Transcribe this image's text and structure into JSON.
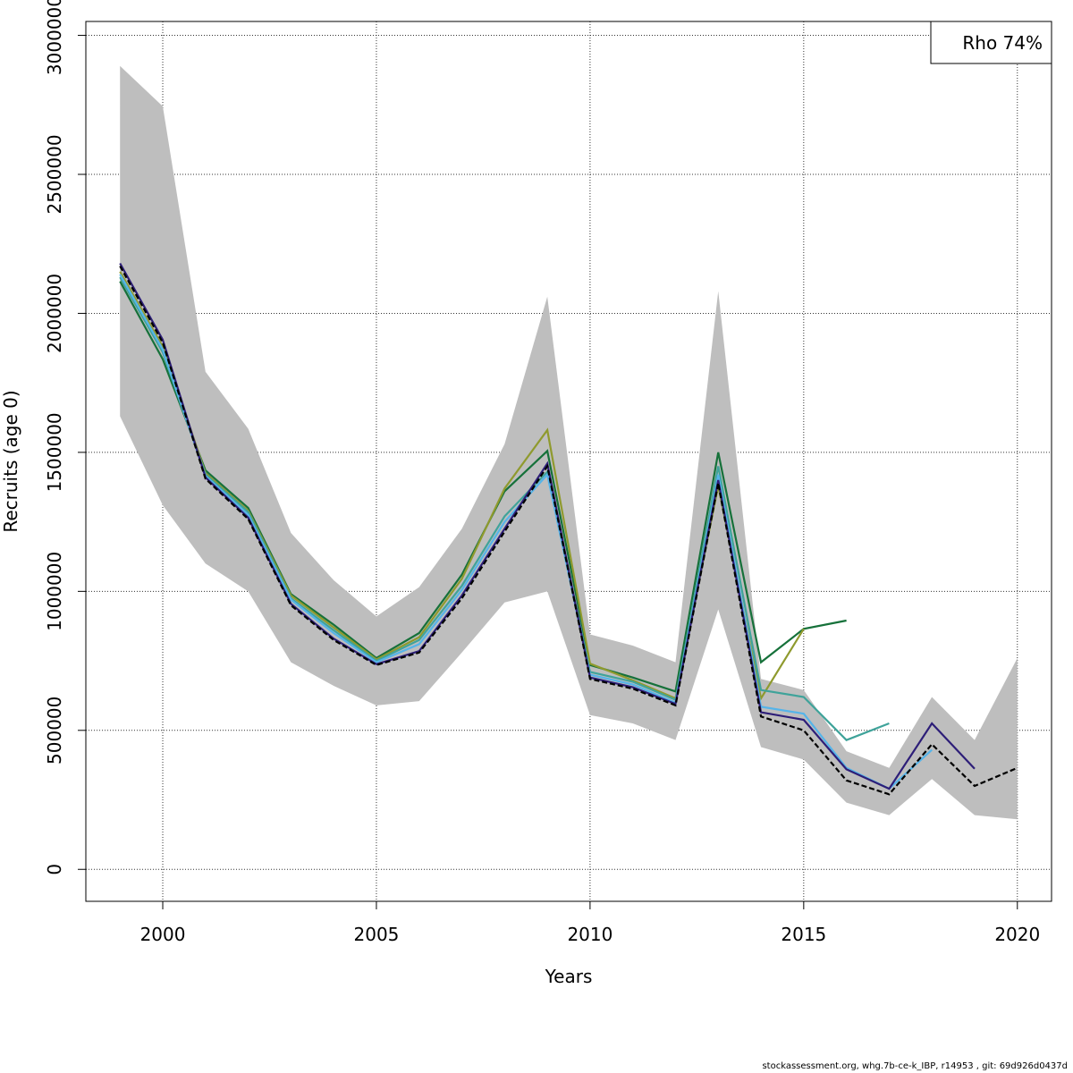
{
  "chart_data": {
    "type": "line",
    "xlabel": "Years",
    "ylabel": "Recruits (age 0)",
    "xlim": [
      1998.2,
      2020.8
    ],
    "ylim": [
      -115000,
      3050000
    ],
    "x_ticks": [
      2000,
      2005,
      2010,
      2015,
      2020
    ],
    "y_ticks": [
      0,
      500000,
      1000000,
      1500000,
      2000000,
      2500000,
      3000000
    ],
    "grid": true,
    "legend_position": "top-right",
    "legend": {
      "text": "Rho 74%"
    },
    "band": {
      "color": "#bebebe",
      "x": [
        1999,
        2000,
        2001,
        2002,
        2003,
        2004,
        2005,
        2006,
        2007,
        2008,
        2009,
        2010,
        2011,
        2012,
        2013,
        2014,
        2015,
        2016,
        2017,
        2018,
        2019,
        2020
      ],
      "lower": [
        1630000,
        1310000,
        1100000,
        1000000,
        745000,
        660000,
        590000,
        605000,
        780000,
        960000,
        1000000,
        555000,
        525000,
        465000,
        935000,
        440000,
        395000,
        240000,
        195000,
        325000,
        195000,
        180000
      ],
      "upper": [
        2890000,
        2745000,
        1790000,
        1585000,
        1210000,
        1040000,
        910000,
        1015000,
        1225000,
        1530000,
        2060000,
        845000,
        805000,
        745000,
        2080000,
        685000,
        645000,
        425000,
        365000,
        620000,
        465000,
        760000
      ]
    },
    "series": [
      {
        "color": "#000000",
        "dashed": true,
        "x": [
          1999,
          2000,
          2001,
          2002,
          2003,
          2004,
          2005,
          2006,
          2007,
          2008,
          2009,
          2010,
          2011,
          2012,
          2013,
          2014,
          2015,
          2016,
          2017,
          2018,
          2019,
          2020
        ],
        "values": [
          2170000,
          1895000,
          1405000,
          1260000,
          950000,
          825000,
          735000,
          780000,
          975000,
          1215000,
          1450000,
          685000,
          650000,
          590000,
          1390000,
          550000,
          500000,
          320000,
          270000,
          450000,
          300000,
          365000
        ]
      },
      {
        "color": "#2d1e78",
        "x": [
          1999,
          2000,
          2001,
          2002,
          2003,
          2004,
          2005,
          2006,
          2007,
          2008,
          2009,
          2010,
          2011,
          2012,
          2013,
          2014,
          2015,
          2016,
          2017,
          2018,
          2019
        ],
        "values": [
          2180000,
          1905000,
          1410000,
          1265000,
          955000,
          830000,
          738000,
          785000,
          985000,
          1225000,
          1460000,
          690000,
          655000,
          595000,
          1400000,
          565000,
          538000,
          360000,
          290000,
          525000,
          362000
        ]
      },
      {
        "color": "#56b4e9",
        "x": [
          1999,
          2000,
          2001,
          2002,
          2003,
          2004,
          2005,
          2006,
          2007,
          2008,
          2009,
          2010,
          2011,
          2012,
          2013,
          2014,
          2015,
          2016,
          2017,
          2018
        ],
        "values": [
          2140000,
          1870000,
          1415000,
          1275000,
          970000,
          850000,
          745000,
          810000,
          1005000,
          1250000,
          1420000,
          700000,
          665000,
          600000,
          1420000,
          585000,
          560000,
          365000,
          290000,
          430000
        ]
      },
      {
        "color": "#3fa39a",
        "x": [
          1999,
          2000,
          2001,
          2002,
          2003,
          2004,
          2005,
          2006,
          2007,
          2008,
          2009,
          2010,
          2011,
          2012,
          2013,
          2014,
          2015,
          2016,
          2017
        ],
        "values": [
          2130000,
          1860000,
          1420000,
          1285000,
          975000,
          860000,
          750000,
          825000,
          1020000,
          1270000,
          1430000,
          710000,
          675000,
          610000,
          1450000,
          645000,
          620000,
          465000,
          525000
        ]
      },
      {
        "color": "#8f9a2e",
        "x": [
          1999,
          2000,
          2001,
          2002,
          2003,
          2004,
          2005,
          2006,
          2007,
          2008,
          2009,
          2010,
          2011,
          2012,
          2013,
          2014,
          2015
        ],
        "values": [
          2150000,
          1880000,
          1425000,
          1290000,
          985000,
          870000,
          755000,
          835000,
          1045000,
          1370000,
          1580000,
          740000,
          680000,
          615000,
          1380000,
          615000,
          865000
        ]
      },
      {
        "color": "#16713a",
        "x": [
          1999,
          2000,
          2001,
          2002,
          2003,
          2004,
          2005,
          2006,
          2007,
          2008,
          2009,
          2010,
          2011,
          2012,
          2013,
          2014,
          2015,
          2016
        ],
        "values": [
          2115000,
          1835000,
          1435000,
          1300000,
          990000,
          880000,
          760000,
          850000,
          1060000,
          1360000,
          1505000,
          735000,
          690000,
          640000,
          1500000,
          745000,
          865000,
          895000
        ]
      }
    ]
  },
  "footer": "stockassessment.org, whg.7b-ce-k_IBP, r14953 , git: 69d926d0437d"
}
